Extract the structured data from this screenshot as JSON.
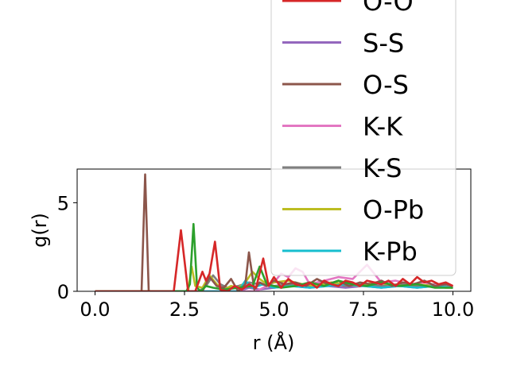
{
  "chart_data": {
    "type": "line",
    "xlabel": "r (Å)",
    "ylabel": "g(r)",
    "xlim": [
      -0.5,
      10.5
    ],
    "ylim": [
      0,
      6.9
    ],
    "xticks": [
      0.0,
      2.5,
      5.0,
      7.5,
      10.0
    ],
    "xtick_labels": [
      "0.0",
      "2.5",
      "5.0",
      "7.5",
      "10.0"
    ],
    "yticks": [
      0,
      5
    ],
    "ytick_labels": [
      "0",
      "5"
    ],
    "legend_position": "top-right",
    "grid": false,
    "series": [
      {
        "name": "O-O",
        "color": "#d62728",
        "x": [
          0,
          2.2,
          2.4,
          2.6,
          2.8,
          3.0,
          3.1,
          3.2,
          3.35,
          3.5,
          3.7,
          3.9,
          4.1,
          4.3,
          4.5,
          4.7,
          4.85,
          5.0,
          5.2,
          5.4,
          5.6,
          5.8,
          6.0,
          6.2,
          6.4,
          6.6,
          6.8,
          7.0,
          7.2,
          7.4,
          7.6,
          7.8,
          8.0,
          8.2,
          8.4,
          8.6,
          8.8,
          9.0,
          9.2,
          9.4,
          9.6,
          9.8,
          10.0
        ],
        "y": [
          0,
          0,
          3.45,
          0,
          0,
          1.1,
          0.6,
          1.0,
          2.8,
          0.1,
          0,
          0.3,
          0.1,
          0.4,
          0.2,
          1.85,
          0.3,
          0.8,
          0.2,
          0.7,
          0.4,
          0.3,
          0.5,
          0.2,
          0.6,
          0.4,
          0.3,
          0.6,
          0.5,
          0.3,
          0.6,
          0.5,
          0.4,
          0.6,
          0.3,
          0.7,
          0.4,
          0.8,
          0.5,
          0.6,
          0.4,
          0.5,
          0.3
        ]
      },
      {
        "name": "S-S",
        "color": "#9467bd",
        "x": [
          0,
          4.0,
          4.3,
          4.6,
          5.0,
          5.5,
          6.0,
          6.5,
          7.0,
          7.5,
          8.0,
          8.5,
          9.0,
          9.5,
          10.0
        ],
        "y": [
          0,
          0,
          0.2,
          0.1,
          0.2,
          0.3,
          0.2,
          0.3,
          0.2,
          0.3,
          0.2,
          0.3,
          0.2,
          0.3,
          0.2
        ]
      },
      {
        "name": "O-S",
        "color": "#8c564b",
        "x": [
          0,
          1.3,
          1.4,
          1.5,
          3.0,
          3.2,
          3.4,
          3.6,
          3.8,
          4.0,
          4.2,
          4.3,
          4.45,
          4.6,
          4.8,
          5.0,
          5.3,
          5.6,
          5.9,
          6.2,
          6.5,
          6.8,
          7.1,
          7.4,
          7.7,
          8.0,
          8.3,
          8.6,
          8.9,
          9.2,
          9.5,
          9.8,
          10.0
        ],
        "y": [
          0,
          0,
          6.6,
          0,
          0,
          0.8,
          0.3,
          0.2,
          0.7,
          0,
          0.4,
          2.2,
          0.1,
          0.5,
          0.3,
          0.6,
          0.4,
          0.5,
          0.3,
          0.7,
          0.4,
          0.6,
          0.3,
          0.5,
          0.4,
          0.6,
          0.3,
          0.5,
          0.4,
          0.6,
          0.3,
          0.4,
          0.3
        ]
      },
      {
        "name": "K-K",
        "color": "#e377c2",
        "x": [
          0,
          4.5,
          4.8,
          5.0,
          5.2,
          5.4,
          5.6,
          5.8,
          6.0,
          6.4,
          6.8,
          7.2,
          7.6,
          8.0,
          8.4,
          8.8,
          9.2,
          9.6,
          10.0
        ],
        "y": [
          0,
          0,
          0.3,
          0.5,
          1.0,
          0.8,
          1.3,
          1.1,
          0.4,
          0.6,
          0.8,
          0.7,
          1.5,
          0.5,
          0.6,
          0.4,
          0.5,
          0.3,
          0.2
        ]
      },
      {
        "name": "K-S",
        "color": "#7f7f7f",
        "x": [
          0,
          2.9,
          3.1,
          3.3,
          3.5,
          3.7,
          4.0,
          4.3,
          4.6,
          5.0,
          5.5,
          6.0,
          6.5,
          7.0,
          7.5,
          8.0,
          8.5,
          9.0,
          9.5,
          10.0
        ],
        "y": [
          0,
          0,
          0.3,
          0.9,
          0.4,
          0.2,
          0.3,
          0.5,
          0.4,
          0.3,
          0.4,
          0.3,
          0.5,
          0.3,
          0.4,
          0.3,
          0.4,
          0.3,
          0.4,
          0.2
        ]
      },
      {
        "name": "O-Pb",
        "color": "#bcbd22",
        "x": [
          0,
          2.6,
          2.7,
          2.8,
          3.0,
          3.2,
          3.4,
          3.6,
          3.8,
          4.0,
          4.2,
          4.4,
          4.6,
          4.8,
          5.0,
          5.4,
          5.8,
          6.2,
          6.6,
          7.0,
          7.4,
          7.8,
          8.2,
          8.6,
          9.0,
          9.4,
          9.8,
          10.0
        ],
        "y": [
          0,
          0,
          1.4,
          0.3,
          0.2,
          0.9,
          0.4,
          0.1,
          0.3,
          0.2,
          0.5,
          1.1,
          0.7,
          0.4,
          0.5,
          0.6,
          0.4,
          0.3,
          0.5,
          0.4,
          0.3,
          0.5,
          0.4,
          0.3,
          0.4,
          0.3,
          0.2,
          0.2
        ]
      },
      {
        "name": "K-Pb",
        "color": "#17becf",
        "x": [
          0,
          4.0,
          4.2,
          4.4,
          4.7,
          5.0,
          5.5,
          6.0,
          6.5,
          7.0,
          7.5,
          8.0,
          8.5,
          9.0,
          9.5,
          10.0
        ],
        "y": [
          0,
          0,
          0.6,
          0.2,
          0.4,
          0.2,
          0.3,
          0.2,
          0.3,
          0.4,
          0.3,
          0.2,
          0.3,
          0.2,
          0.3,
          0.2
        ]
      },
      {
        "name": "",
        "color": "#2ca02c",
        "x": [
          0,
          2.55,
          2.65,
          2.75,
          2.85,
          2.95,
          3.1,
          3.3,
          3.6,
          4.0,
          4.4,
          4.6,
          4.8,
          5.2,
          5.6,
          6.0,
          6.4,
          6.8,
          7.2,
          7.6,
          8.0,
          8.5,
          9.0,
          9.5,
          10.0
        ],
        "y": [
          0,
          0,
          0.4,
          3.8,
          0.2,
          0,
          0.3,
          0.2,
          0.1,
          0.2,
          0.3,
          1.4,
          0.4,
          0.2,
          0.3,
          0.5,
          0.3,
          0.6,
          0.4,
          0.3,
          0.5,
          0.3,
          0.4,
          0.2,
          0.2
        ]
      }
    ]
  }
}
